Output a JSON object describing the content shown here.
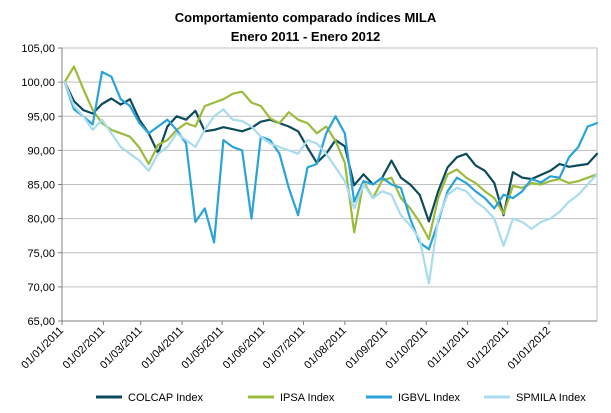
{
  "chart_data": {
    "type": "line",
    "title": "Comportamiento comparado índices MILA",
    "subtitle": "Enero 2011 - Enero 2012",
    "xlabel": "",
    "ylabel": "",
    "ylim": [
      65,
      105
    ],
    "y_ticks": [
      "105,00",
      "100,00",
      "95,00",
      "90,00",
      "85,00",
      "80,00",
      "75,00",
      "70,00",
      "65,00"
    ],
    "x_range": [
      "2011-01-01",
      "2012-02-06"
    ],
    "x_ticks": [
      {
        "date": "2011-01-01",
        "label": "01/01/2011"
      },
      {
        "date": "2011-02-01",
        "label": "01/02/2011"
      },
      {
        "date": "2011-03-01",
        "label": "01/03/2011"
      },
      {
        "date": "2011-04-01",
        "label": "01/04/2011"
      },
      {
        "date": "2011-05-01",
        "label": "01/05/2011"
      },
      {
        "date": "2011-06-01",
        "label": "01/06/2011"
      },
      {
        "date": "2011-07-01",
        "label": "01/07/2011"
      },
      {
        "date": "2011-08-01",
        "label": "01/08/2011"
      },
      {
        "date": "2011-09-01",
        "label": "01/09/2011"
      },
      {
        "date": "2011-10-01",
        "label": "01/10/2011"
      },
      {
        "date": "2011-11-01",
        "label": "01/11/2011"
      },
      {
        "date": "2011-12-01",
        "label": "01/12/2011"
      },
      {
        "date": "2012-01-01",
        "label": "01/01/2012"
      }
    ],
    "grid": true,
    "legend_position": "bottom",
    "series": [
      {
        "name": "COLCAP Index",
        "color": "#0d4b5c",
        "points": [
          [
            "2011-01-03",
            100.0
          ],
          [
            "2011-01-10",
            97.2
          ],
          [
            "2011-01-17",
            95.9
          ],
          [
            "2011-01-24",
            95.4
          ],
          [
            "2011-01-31",
            96.8
          ],
          [
            "2011-02-07",
            97.6
          ],
          [
            "2011-02-14",
            96.7
          ],
          [
            "2011-02-21",
            97.5
          ],
          [
            "2011-02-28",
            94.5
          ],
          [
            "2011-03-07",
            92.5
          ],
          [
            "2011-03-14",
            89.6
          ],
          [
            "2011-03-21",
            93.5
          ],
          [
            "2011-03-28",
            95.0
          ],
          [
            "2011-04-04",
            94.5
          ],
          [
            "2011-04-11",
            95.8
          ],
          [
            "2011-04-18",
            92.8
          ],
          [
            "2011-04-25",
            93.0
          ],
          [
            "2011-05-02",
            93.4
          ],
          [
            "2011-05-09",
            93.1
          ],
          [
            "2011-05-16",
            92.8
          ],
          [
            "2011-05-23",
            93.3
          ],
          [
            "2011-05-30",
            94.2
          ],
          [
            "2011-06-06",
            94.5
          ],
          [
            "2011-06-13",
            94.0
          ],
          [
            "2011-06-20",
            93.5
          ],
          [
            "2011-06-27",
            92.8
          ],
          [
            "2011-07-04",
            90.4
          ],
          [
            "2011-07-11",
            88.2
          ],
          [
            "2011-07-18",
            89.5
          ],
          [
            "2011-07-25",
            91.5
          ],
          [
            "2011-08-01",
            90.6
          ],
          [
            "2011-08-08",
            84.9
          ],
          [
            "2011-08-15",
            86.5
          ],
          [
            "2011-08-22",
            85.0
          ],
          [
            "2011-08-29",
            86.0
          ],
          [
            "2011-09-05",
            88.5
          ],
          [
            "2011-09-12",
            86.0
          ],
          [
            "2011-09-19",
            85.0
          ],
          [
            "2011-09-26",
            83.5
          ],
          [
            "2011-10-03",
            79.6
          ],
          [
            "2011-10-10",
            84.0
          ],
          [
            "2011-10-17",
            87.5
          ],
          [
            "2011-10-24",
            89.0
          ],
          [
            "2011-10-31",
            89.5
          ],
          [
            "2011-11-07",
            87.8
          ],
          [
            "2011-11-14",
            87.0
          ],
          [
            "2011-11-21",
            85.2
          ],
          [
            "2011-11-28",
            80.5
          ],
          [
            "2011-12-05",
            86.8
          ],
          [
            "2011-12-12",
            86.0
          ],
          [
            "2011-12-19",
            85.8
          ],
          [
            "2011-12-26",
            86.4
          ],
          [
            "2012-01-02",
            87.0
          ],
          [
            "2012-01-09",
            88.0
          ],
          [
            "2012-01-16",
            87.6
          ],
          [
            "2012-01-23",
            87.8
          ],
          [
            "2012-01-30",
            88.0
          ],
          [
            "2012-02-06",
            89.5
          ]
        ]
      },
      {
        "name": "IPSA Index",
        "color": "#9bbb3c",
        "points": [
          [
            "2011-01-03",
            100.0
          ],
          [
            "2011-01-10",
            102.3
          ],
          [
            "2011-01-17",
            99.0
          ],
          [
            "2011-01-24",
            95.9
          ],
          [
            "2011-01-31",
            94.0
          ],
          [
            "2011-02-07",
            93.0
          ],
          [
            "2011-02-14",
            92.5
          ],
          [
            "2011-02-21",
            92.0
          ],
          [
            "2011-02-28",
            90.4
          ],
          [
            "2011-03-07",
            88.0
          ],
          [
            "2011-03-14",
            90.8
          ],
          [
            "2011-03-21",
            91.5
          ],
          [
            "2011-03-28",
            93.0
          ],
          [
            "2011-04-04",
            94.0
          ],
          [
            "2011-04-11",
            93.5
          ],
          [
            "2011-04-18",
            96.5
          ],
          [
            "2011-04-25",
            97.0
          ],
          [
            "2011-05-02",
            97.5
          ],
          [
            "2011-05-09",
            98.3
          ],
          [
            "2011-05-16",
            98.6
          ],
          [
            "2011-05-23",
            97.0
          ],
          [
            "2011-05-30",
            96.5
          ],
          [
            "2011-06-06",
            94.7
          ],
          [
            "2011-06-13",
            94.0
          ],
          [
            "2011-06-20",
            95.6
          ],
          [
            "2011-06-27",
            94.5
          ],
          [
            "2011-07-04",
            94.0
          ],
          [
            "2011-07-11",
            92.5
          ],
          [
            "2011-07-18",
            93.5
          ],
          [
            "2011-07-25",
            91.4
          ],
          [
            "2011-08-01",
            88.2
          ],
          [
            "2011-08-08",
            78.0
          ],
          [
            "2011-08-15",
            85.4
          ],
          [
            "2011-08-22",
            83.0
          ],
          [
            "2011-08-29",
            85.6
          ],
          [
            "2011-09-05",
            86.0
          ],
          [
            "2011-09-12",
            83.0
          ],
          [
            "2011-09-19",
            81.5
          ],
          [
            "2011-09-26",
            79.5
          ],
          [
            "2011-10-03",
            77.0
          ],
          [
            "2011-10-10",
            83.0
          ],
          [
            "2011-10-17",
            86.5
          ],
          [
            "2011-10-24",
            87.2
          ],
          [
            "2011-10-31",
            86.0
          ],
          [
            "2011-11-07",
            85.2
          ],
          [
            "2011-11-14",
            84.0
          ],
          [
            "2011-11-21",
            83.0
          ],
          [
            "2011-11-28",
            80.7
          ],
          [
            "2011-12-05",
            84.8
          ],
          [
            "2011-12-12",
            84.5
          ],
          [
            "2011-12-19",
            85.2
          ],
          [
            "2011-12-26",
            85.0
          ],
          [
            "2012-01-02",
            85.5
          ],
          [
            "2012-01-09",
            85.8
          ],
          [
            "2012-01-16",
            85.2
          ],
          [
            "2012-01-23",
            85.5
          ],
          [
            "2012-01-30",
            86.0
          ],
          [
            "2012-02-06",
            86.5
          ]
        ]
      },
      {
        "name": "IGBVL Index",
        "color": "#29a3d8",
        "points": [
          [
            "2011-01-03",
            100.0
          ],
          [
            "2011-01-10",
            96.0
          ],
          [
            "2011-01-17",
            95.0
          ],
          [
            "2011-01-24",
            93.8
          ],
          [
            "2011-01-31",
            101.5
          ],
          [
            "2011-02-07",
            100.8
          ],
          [
            "2011-02-14",
            97.5
          ],
          [
            "2011-02-21",
            96.5
          ],
          [
            "2011-02-28",
            94.0
          ],
          [
            "2011-03-07",
            92.5
          ],
          [
            "2011-03-14",
            93.5
          ],
          [
            "2011-03-21",
            94.5
          ],
          [
            "2011-03-28",
            93.0
          ],
          [
            "2011-04-04",
            91.0
          ],
          [
            "2011-04-11",
            79.5
          ],
          [
            "2011-04-18",
            81.5
          ],
          [
            "2011-04-25",
            76.5
          ],
          [
            "2011-05-02",
            91.5
          ],
          [
            "2011-05-09",
            90.5
          ],
          [
            "2011-05-16",
            90.0
          ],
          [
            "2011-05-23",
            80.0
          ],
          [
            "2011-05-30",
            92.0
          ],
          [
            "2011-06-06",
            91.5
          ],
          [
            "2011-06-13",
            89.5
          ],
          [
            "2011-06-20",
            84.5
          ],
          [
            "2011-06-27",
            80.5
          ],
          [
            "2011-07-04",
            87.5
          ],
          [
            "2011-07-11",
            88.0
          ],
          [
            "2011-07-18",
            92.5
          ],
          [
            "2011-07-25",
            95.0
          ],
          [
            "2011-08-01",
            92.5
          ],
          [
            "2011-08-08",
            82.5
          ],
          [
            "2011-08-15",
            85.5
          ],
          [
            "2011-08-22",
            85.0
          ],
          [
            "2011-08-29",
            86.0
          ],
          [
            "2011-09-05",
            85.0
          ],
          [
            "2011-09-12",
            84.5
          ],
          [
            "2011-09-19",
            80.0
          ],
          [
            "2011-09-26",
            76.5
          ],
          [
            "2011-10-03",
            75.5
          ],
          [
            "2011-10-10",
            79.5
          ],
          [
            "2011-10-17",
            84.0
          ],
          [
            "2011-10-24",
            86.0
          ],
          [
            "2011-10-31",
            85.2
          ],
          [
            "2011-11-07",
            84.0
          ],
          [
            "2011-11-14",
            83.0
          ],
          [
            "2011-11-21",
            81.5
          ],
          [
            "2011-11-28",
            83.5
          ],
          [
            "2011-12-05",
            83.0
          ],
          [
            "2011-12-12",
            84.0
          ],
          [
            "2011-12-19",
            85.8
          ],
          [
            "2011-12-26",
            85.3
          ],
          [
            "2012-01-02",
            86.2
          ],
          [
            "2012-01-09",
            86.0
          ],
          [
            "2012-01-16",
            89.0
          ],
          [
            "2012-01-23",
            90.5
          ],
          [
            "2012-01-30",
            93.5
          ],
          [
            "2012-02-06",
            94.0
          ]
        ]
      },
      {
        "name": "SPMILA Index",
        "color": "#a9dcef",
        "points": [
          [
            "2011-01-03",
            100.0
          ],
          [
            "2011-01-10",
            96.5
          ],
          [
            "2011-01-17",
            95.0
          ],
          [
            "2011-01-24",
            93.0
          ],
          [
            "2011-01-31",
            94.5
          ],
          [
            "2011-02-07",
            92.5
          ],
          [
            "2011-02-14",
            90.5
          ],
          [
            "2011-02-21",
            89.5
          ],
          [
            "2011-02-28",
            88.5
          ],
          [
            "2011-03-07",
            87.0
          ],
          [
            "2011-03-14",
            89.5
          ],
          [
            "2011-03-21",
            90.5
          ],
          [
            "2011-03-28",
            92.5
          ],
          [
            "2011-04-04",
            91.5
          ],
          [
            "2011-04-11",
            90.5
          ],
          [
            "2011-04-18",
            93.0
          ],
          [
            "2011-04-25",
            95.0
          ],
          [
            "2011-05-02",
            96.0
          ],
          [
            "2011-05-09",
            94.5
          ],
          [
            "2011-05-16",
            94.3
          ],
          [
            "2011-05-23",
            93.5
          ],
          [
            "2011-05-30",
            92.0
          ],
          [
            "2011-06-06",
            91.0
          ],
          [
            "2011-06-13",
            90.5
          ],
          [
            "2011-06-20",
            90.0
          ],
          [
            "2011-06-27",
            89.5
          ],
          [
            "2011-07-04",
            91.5
          ],
          [
            "2011-07-11",
            91.0
          ],
          [
            "2011-07-18",
            89.5
          ],
          [
            "2011-07-25",
            87.5
          ],
          [
            "2011-08-01",
            85.5
          ],
          [
            "2011-08-08",
            81.5
          ],
          [
            "2011-08-15",
            85.0
          ],
          [
            "2011-08-22",
            83.0
          ],
          [
            "2011-08-29",
            84.0
          ],
          [
            "2011-09-05",
            83.5
          ],
          [
            "2011-09-12",
            80.5
          ],
          [
            "2011-09-19",
            79.0
          ],
          [
            "2011-09-26",
            77.0
          ],
          [
            "2011-10-03",
            70.5
          ],
          [
            "2011-10-10",
            80.0
          ],
          [
            "2011-10-17",
            83.5
          ],
          [
            "2011-10-24",
            84.5
          ],
          [
            "2011-10-31",
            84.0
          ],
          [
            "2011-11-07",
            82.5
          ],
          [
            "2011-11-14",
            81.5
          ],
          [
            "2011-11-21",
            80.0
          ],
          [
            "2011-11-28",
            76.0
          ],
          [
            "2011-12-05",
            80.0
          ],
          [
            "2011-12-12",
            79.5
          ],
          [
            "2011-12-19",
            78.5
          ],
          [
            "2011-12-26",
            79.5
          ],
          [
            "2012-01-02",
            80.0
          ],
          [
            "2012-01-09",
            81.0
          ],
          [
            "2012-01-16",
            82.5
          ],
          [
            "2012-01-23",
            83.5
          ],
          [
            "2012-01-30",
            85.0
          ],
          [
            "2012-02-06",
            86.5
          ]
        ]
      }
    ]
  }
}
